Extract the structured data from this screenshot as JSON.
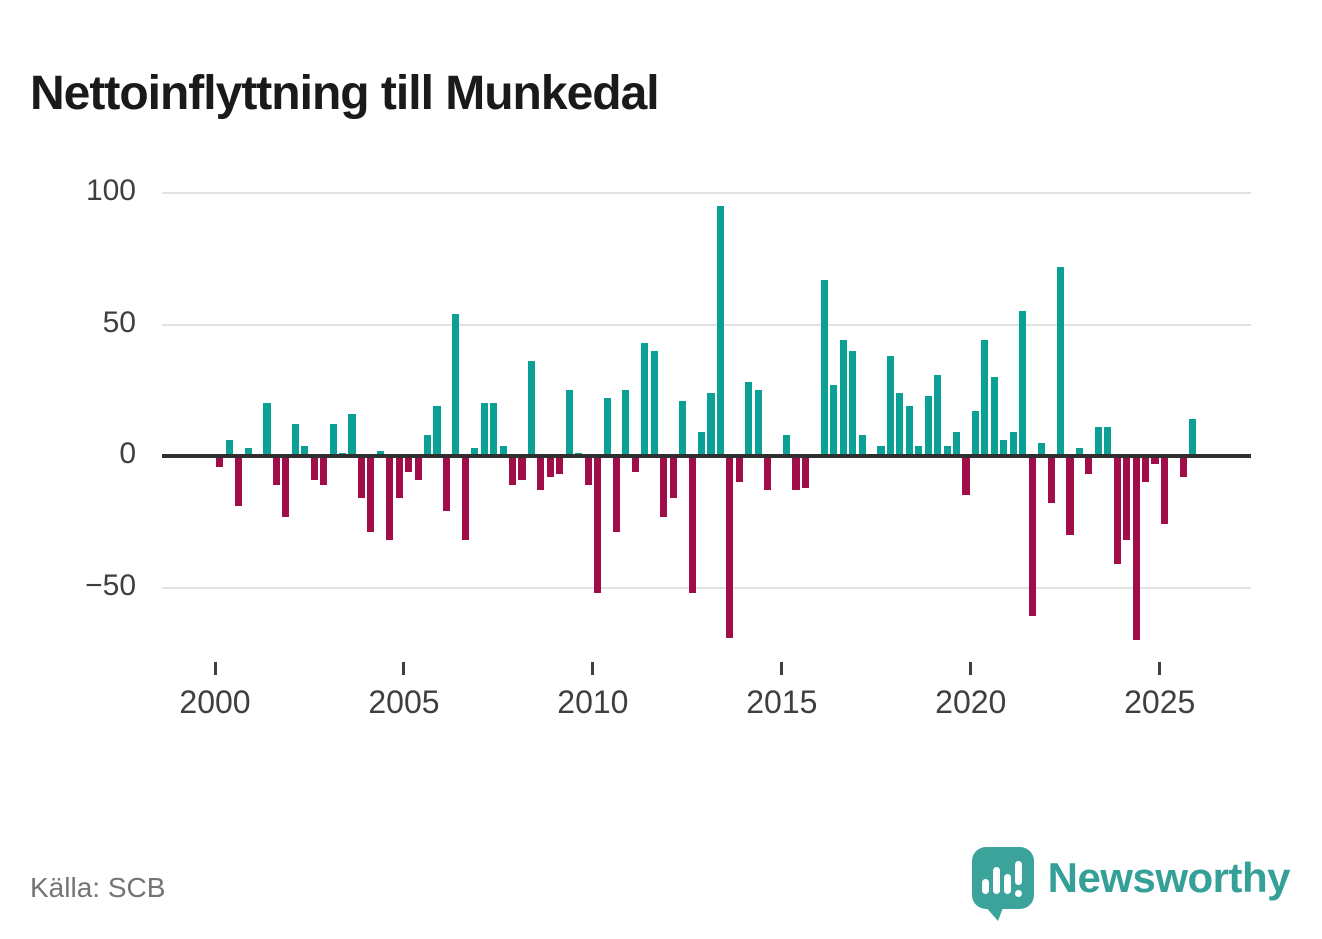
{
  "title": "Nettoinflyttning till Munkedal",
  "source": "Källa: SCB",
  "brand": {
    "name": "Newsworthy",
    "badge_icon": "bar-chart-exclamation-speech-bubble"
  },
  "colors": {
    "positive_bar": "#0aa096",
    "negative_bar": "#a00d49",
    "zero_line": "#2f2f2f",
    "gridline": "#e2e2e2",
    "axis_text": "#3f3f3f",
    "title_text": "#1a1a1a",
    "source_text": "#757575",
    "brand_teal": "#35a098"
  },
  "chart_data": {
    "type": "bar",
    "title": "Nettoinflyttning till Munkedal",
    "xlabel": "",
    "ylabel": "",
    "frequency": "quarterly",
    "x_range": [
      "2000Q1",
      "2025Q4"
    ],
    "ylim": [
      -75,
      105
    ],
    "y_ticks": [
      100,
      50,
      0,
      -50
    ],
    "y_tick_labels": [
      "100",
      "50",
      "0",
      "−50"
    ],
    "x_tick_years": [
      2000,
      2005,
      2010,
      2015,
      2020,
      2025
    ],
    "x_tick_labels": [
      "2000",
      "2005",
      "2010",
      "2015",
      "2020",
      "2025"
    ],
    "grid": "horizontal-only",
    "legend": "none",
    "series": [
      {
        "year": 2000,
        "values": [
          -4,
          6,
          -19,
          3
        ]
      },
      {
        "year": 2001,
        "values": [
          0,
          20,
          -11,
          -23
        ]
      },
      {
        "year": 2002,
        "values": [
          12,
          4,
          -9,
          -11
        ]
      },
      {
        "year": 2003,
        "values": [
          12,
          1,
          16,
          -16
        ]
      },
      {
        "year": 2004,
        "values": [
          -29,
          2,
          -32,
          -16
        ]
      },
      {
        "year": 2005,
        "values": [
          -6,
          -9,
          8,
          19
        ]
      },
      {
        "year": 2006,
        "values": [
          -21,
          54,
          -32,
          3
        ]
      },
      {
        "year": 2007,
        "values": [
          20,
          20,
          4,
          -11
        ]
      },
      {
        "year": 2008,
        "values": [
          -9,
          36,
          -13,
          -8
        ]
      },
      {
        "year": 2009,
        "values": [
          -7,
          25,
          1,
          -11
        ]
      },
      {
        "year": 2010,
        "values": [
          -52,
          22,
          -29,
          25
        ]
      },
      {
        "year": 2011,
        "values": [
          -6,
          43,
          40,
          -23
        ]
      },
      {
        "year": 2012,
        "values": [
          -16,
          21,
          -52,
          9
        ]
      },
      {
        "year": 2013,
        "values": [
          24,
          95,
          -69,
          -10
        ]
      },
      {
        "year": 2014,
        "values": [
          28,
          25,
          -13,
          0
        ]
      },
      {
        "year": 2015,
        "values": [
          8,
          -13,
          -12,
          0
        ]
      },
      {
        "year": 2016,
        "values": [
          67,
          27,
          44,
          40
        ]
      },
      {
        "year": 2017,
        "values": [
          8,
          0,
          4,
          38
        ]
      },
      {
        "year": 2018,
        "values": [
          24,
          19,
          4,
          23
        ]
      },
      {
        "year": 2019,
        "values": [
          31,
          4,
          9,
          -15
        ]
      },
      {
        "year": 2020,
        "values": [
          17,
          44,
          30,
          6
        ]
      },
      {
        "year": 2021,
        "values": [
          9,
          55,
          -61,
          5
        ]
      },
      {
        "year": 2022,
        "values": [
          -18,
          72,
          -30,
          3
        ]
      },
      {
        "year": 2023,
        "values": [
          -7,
          11,
          11,
          -41
        ]
      },
      {
        "year": 2024,
        "values": [
          -32,
          -70,
          -10,
          -3
        ]
      },
      {
        "year": 2025,
        "values": [
          -26,
          0,
          -8,
          14
        ]
      }
    ]
  }
}
